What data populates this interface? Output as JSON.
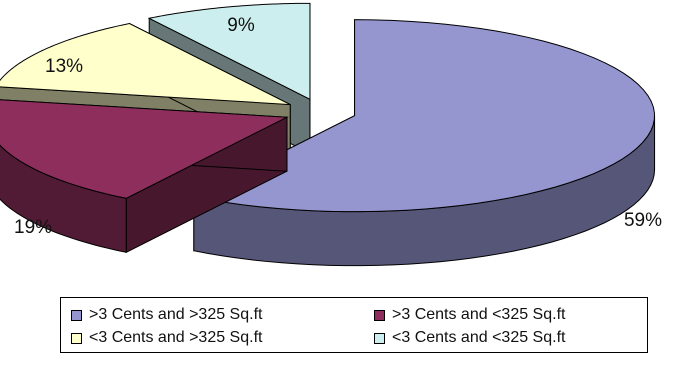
{
  "chart_data": {
    "type": "pie",
    "style": "3d-exploded",
    "slices": [
      {
        "label": ">3 Cents and >325 Sq.ft",
        "value": 59,
        "display": "59%",
        "color": "#9595cf"
      },
      {
        "label": ">3 Cents and <325 Sq.ft",
        "value": 19,
        "display": "19%",
        "color": "#8e2e5c"
      },
      {
        "label": "<3 Cents and >325 Sq.ft",
        "value": 13,
        "display": "13%",
        "color": "#ffffcb"
      },
      {
        "label": "<3 Cents and <325 Sq.ft",
        "value": 9,
        "display": "9%",
        "color": "#cdeeee"
      }
    ],
    "legend_position": "bottom"
  }
}
